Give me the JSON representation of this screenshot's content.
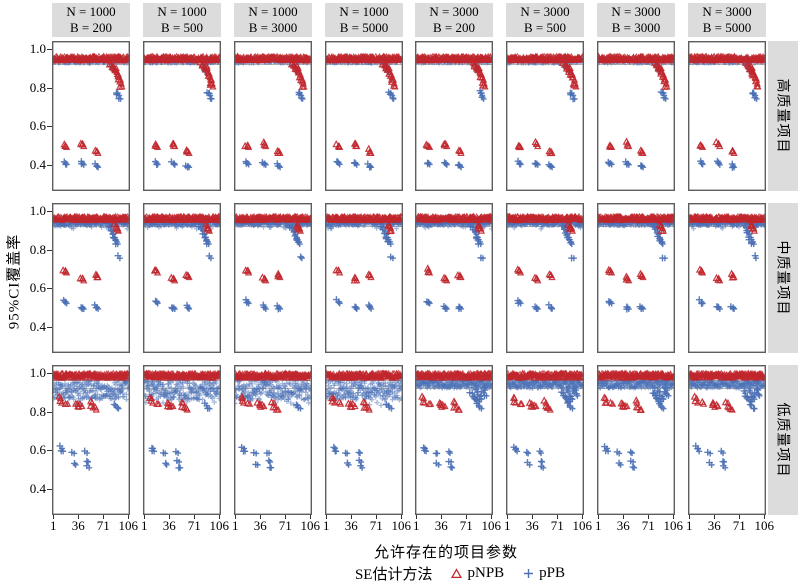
{
  "figure_name": "coverage-simulation-facet-plot",
  "colors": {
    "pNPB": "#c1272d",
    "pPB": "#4a6fb5",
    "ref_line": "#a8a8a8",
    "panel_border": "#5e5e5e",
    "strip_bg": "#dcdcdc",
    "tick": "#333333"
  },
  "chart_data": {
    "type": "scatter",
    "title": "",
    "xlabel": "允许存在的项目参数",
    "ylabel": "95%CI覆盖率",
    "x_domain": [
      1,
      106
    ],
    "x_ticks": [
      "1",
      "36",
      "71",
      "106"
    ],
    "x_tick_values": [
      1,
      36,
      71,
      106
    ],
    "y_ticks": [
      "1.0",
      "0.8",
      "0.6",
      "0.4"
    ],
    "y_tick_values": [
      1.0,
      0.8,
      0.6,
      0.4
    ],
    "y_range_panel": [
      0.258,
      1.041
    ],
    "ref_lines": [
      0.96,
      0.92
    ],
    "grid": false,
    "legend": {
      "title": "SE估计方法",
      "position": "bottom",
      "entries": [
        {
          "label": "pNPB",
          "marker": "triangle",
          "color": "#c1272d"
        },
        {
          "label": "pPB",
          "marker": "plus",
          "color": "#4a6fb5"
        }
      ]
    },
    "col_facets": [
      {
        "line1": "N = 1000",
        "line2": "B = 200"
      },
      {
        "line1": "N = 1000",
        "line2": "B = 500"
      },
      {
        "line1": "N = 1000",
        "line2": "B = 3000"
      },
      {
        "line1": "N = 1000",
        "line2": "B = 5000"
      },
      {
        "line1": "N = 3000",
        "line2": "B = 200"
      },
      {
        "line1": "N = 3000",
        "line2": "B = 500"
      },
      {
        "line1": "N = 3000",
        "line2": "B = 3000"
      },
      {
        "line1": "N = 3000",
        "line2": "B = 5000"
      }
    ],
    "row_facets": [
      "高质量项目",
      "中质量项目",
      "低质量项目"
    ],
    "points_per_series_per_panel": 212,
    "rows": [
      {
        "label": "高质量项目",
        "pNPB": {
          "band": {
            "base": 0.95,
            "spread": 0.013
          },
          "outliers": [
            [
              16,
              0.503
            ],
            [
              17.5,
              0.497
            ],
            [
              40,
              0.515
            ],
            [
              41.5,
              0.502
            ],
            [
              60,
              0.476
            ],
            [
              61.5,
              0.466
            ],
            [
              80,
              0.924
            ],
            [
              83,
              0.912
            ],
            [
              85,
              0.899
            ],
            [
              87,
              0.905
            ],
            [
              88,
              0.886
            ],
            [
              90,
              0.872
            ],
            [
              91,
              0.858
            ],
            [
              93,
              0.845
            ],
            [
              94,
              0.826
            ],
            [
              95,
              0.81
            ]
          ]
        },
        "pPB": {
          "band": {
            "base": 0.94,
            "spread": 0.013
          },
          "outliers": [
            [
              16,
              0.416
            ],
            [
              17.5,
              0.409
            ],
            [
              40,
              0.414
            ],
            [
              41.5,
              0.407
            ],
            [
              60,
              0.401
            ],
            [
              61.5,
              0.394
            ],
            [
              82,
              0.912
            ],
            [
              86,
              0.887
            ],
            [
              89,
              0.778
            ],
            [
              91,
              0.766
            ],
            [
              93,
              0.748
            ]
          ]
        }
      },
      {
        "label": "中质量项目",
        "pNPB": {
          "band": {
            "base": 0.961,
            "spread": 0.012
          },
          "outliers": [
            [
              16,
              0.697
            ],
            [
              17.5,
              0.686
            ],
            [
              40,
              0.657
            ],
            [
              41.5,
              0.645
            ],
            [
              60,
              0.673
            ],
            [
              61.5,
              0.662
            ],
            [
              87,
              0.928
            ],
            [
              89,
              0.915
            ],
            [
              90,
              0.902
            ]
          ]
        },
        "pPB": {
          "band": {
            "base": 0.939,
            "spread": 0.014
          },
          "outliers": [
            [
              16,
              0.536
            ],
            [
              17.5,
              0.528
            ],
            [
              40,
              0.507
            ],
            [
              41.5,
              0.499
            ],
            [
              60,
              0.508
            ],
            [
              61.5,
              0.5
            ],
            [
              78,
              0.921
            ],
            [
              81,
              0.903
            ],
            [
              83,
              0.886
            ],
            [
              85,
              0.869
            ],
            [
              86,
              0.858
            ],
            [
              88,
              0.846
            ],
            [
              89,
              0.835
            ],
            [
              92,
              0.762
            ]
          ]
        }
      },
      {
        "label": "低质量项目",
        "pNPB": {
          "band": {
            "base": 0.986,
            "spread": 0.014,
            "clamp_high": 1.003
          },
          "outliers": [
            [
              9,
              0.874
            ],
            [
              10.5,
              0.851
            ],
            [
              19,
              0.845
            ],
            [
              33,
              0.846
            ],
            [
              34.5,
              0.829
            ],
            [
              39,
              0.833
            ],
            [
              53,
              0.851
            ],
            [
              54.5,
              0.826
            ],
            [
              59,
              0.815
            ]
          ]
        },
        "pPB": {
          "band": {
            "base": 0.912,
            "spread": 0.05
          },
          "band_N3000": {
            "base": 0.942,
            "spread": 0.02
          },
          "outliers": [
            [
              11,
              0.616
            ],
            [
              12.5,
              0.601
            ],
            [
              28,
              0.59
            ],
            [
              30,
              0.531
            ],
            [
              46,
              0.592
            ],
            [
              47.5,
              0.546
            ],
            [
              49,
              0.516
            ],
            [
              86,
              0.838
            ],
            [
              90,
              0.822
            ]
          ],
          "outliers_N3000_extra": [
            [
              77,
              0.902
            ],
            [
              80,
              0.882
            ],
            [
              82,
              0.869
            ],
            [
              84,
              0.908
            ],
            [
              86,
              0.857
            ],
            [
              88,
              0.886
            ],
            [
              90,
              0.871
            ],
            [
              93,
              0.903
            ],
            [
              95,
              0.918
            ],
            [
              97,
              0.888
            ]
          ]
        }
      }
    ]
  }
}
